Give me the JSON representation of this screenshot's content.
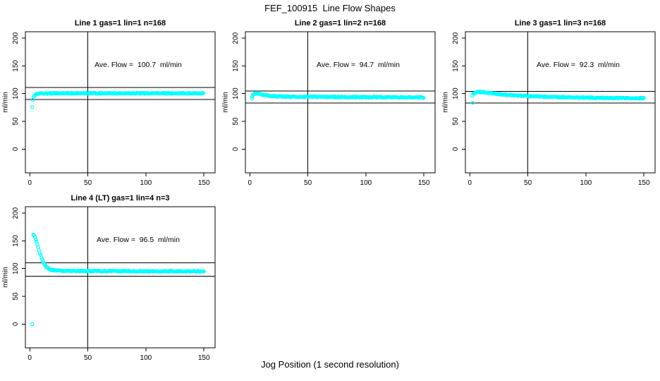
{
  "page": {
    "title": "FEF_100915  Line Flow Shapes",
    "xlabel": "Jog Position (1 second resolution)",
    "background_color": "#ffffff",
    "axis_color": "#000000",
    "point_color": "#00FFFF"
  },
  "chart_data": [
    {
      "type": "scatter",
      "title": "Line 1 gas=1 lin=1 n=168",
      "n": 168,
      "ylabel": "ml/min",
      "x_ticks": [
        0,
        50,
        100,
        150
      ],
      "y_ticks": [
        0,
        50,
        100,
        150,
        200
      ],
      "vline": 50,
      "hlines": [
        111,
        89.5
      ],
      "ave_flow": 100.7,
      "annotation": "Ave. Flow =  100.7  ml/min",
      "profile": [
        [
          2.5,
          89
        ],
        [
          3,
          93
        ],
        [
          4,
          96
        ],
        [
          5,
          98
        ],
        [
          6,
          99
        ],
        [
          8,
          100
        ],
        [
          12,
          100.4
        ],
        [
          20,
          100.6
        ],
        [
          40,
          100.7
        ],
        [
          70,
          100.7
        ],
        [
          100,
          100.6
        ],
        [
          130,
          100.6
        ],
        [
          150,
          100.5
        ]
      ],
      "outliers": [
        [
          2,
          76
        ]
      ]
    },
    {
      "type": "scatter",
      "title": "Line 2 gas=1 lin=2 n=168",
      "n": 168,
      "ylabel": "ml/min",
      "x_ticks": [
        0,
        50,
        100,
        150
      ],
      "y_ticks": [
        0,
        50,
        100,
        150,
        200
      ],
      "vline": 50,
      "hlines": [
        105,
        83
      ],
      "ave_flow": 94.7,
      "annotation": "Ave. Flow =  94.7  ml/min",
      "profile": [
        [
          2,
          95
        ],
        [
          2.5,
          97.5
        ],
        [
          3,
          99
        ],
        [
          4,
          100.2
        ],
        [
          6,
          100.4
        ],
        [
          8,
          99.6
        ],
        [
          10,
          98.6
        ],
        [
          13,
          97.2
        ],
        [
          17,
          96
        ],
        [
          22,
          95.2
        ],
        [
          30,
          94.7
        ],
        [
          45,
          94.3
        ],
        [
          65,
          94.1
        ],
        [
          90,
          93.8
        ],
        [
          120,
          93.5
        ],
        [
          150,
          93.2
        ]
      ],
      "outliers": [
        [
          2,
          91
        ]
      ]
    },
    {
      "type": "scatter",
      "title": "Line 3 gas=1 lin=3 n=168",
      "n": 168,
      "ylabel": "ml/min",
      "x_ticks": [
        0,
        50,
        100,
        150
      ],
      "y_ticks": [
        0,
        50,
        100,
        150,
        200
      ],
      "vline": 50,
      "hlines": [
        104,
        83
      ],
      "ave_flow": 92.3,
      "annotation": "Ave. Flow =  92.3  ml/min",
      "profile": [
        [
          3,
          99.5
        ],
        [
          4,
          101.2
        ],
        [
          6,
          102.4
        ],
        [
          9,
          103
        ],
        [
          12,
          102.6
        ],
        [
          16,
          101.5
        ],
        [
          21,
          100.2
        ],
        [
          27,
          98.8
        ],
        [
          35,
          97.4
        ],
        [
          45,
          96.2
        ],
        [
          60,
          94.9
        ],
        [
          80,
          93.7
        ],
        [
          100,
          92.8
        ],
        [
          120,
          92.2
        ],
        [
          135,
          91.9
        ],
        [
          150,
          91.6
        ]
      ],
      "outliers": [
        [
          2,
          96
        ],
        [
          2.5,
          83.5
        ]
      ]
    },
    {
      "type": "scatter",
      "title": "Line 4 (LT) gas=1 lin=4 n=3",
      "n": 3,
      "ylabel": "ml/min",
      "x_ticks": [
        0,
        50,
        100,
        150
      ],
      "y_ticks": [
        0,
        50,
        100,
        150,
        200
      ],
      "vline": 50,
      "hlines": [
        110.5,
        86
      ],
      "ave_flow": 96.5,
      "annotation": "Ave. Flow =  96.5  ml/min",
      "profile": [
        [
          3,
          162
        ],
        [
          3.5,
          160.5
        ],
        [
          4,
          158.5
        ],
        [
          4.5,
          156
        ],
        [
          5,
          153
        ],
        [
          5.5,
          150
        ],
        [
          6,
          147
        ],
        [
          6.5,
          143.5
        ],
        [
          7,
          140
        ],
        [
          7.5,
          136.5
        ],
        [
          8,
          133
        ],
        [
          8.5,
          129.5
        ],
        [
          9,
          126
        ],
        [
          9.5,
          123
        ],
        [
          10,
          120
        ],
        [
          10.5,
          117
        ],
        [
          11,
          114.5
        ],
        [
          11.5,
          112
        ],
        [
          12,
          110
        ],
        [
          13,
          106.5
        ],
        [
          14,
          103.8
        ],
        [
          15,
          101.8
        ],
        [
          16,
          100.2
        ],
        [
          17,
          99
        ],
        [
          18,
          98.2
        ],
        [
          19,
          97.6
        ],
        [
          20,
          97.2
        ],
        [
          22,
          96.7
        ],
        [
          25,
          96.3
        ],
        [
          30,
          96
        ],
        [
          40,
          95.8
        ],
        [
          60,
          95.6
        ],
        [
          90,
          95.4
        ],
        [
          120,
          95.2
        ],
        [
          150,
          95
        ]
      ],
      "outliers": [
        [
          2,
          0
        ]
      ]
    }
  ]
}
